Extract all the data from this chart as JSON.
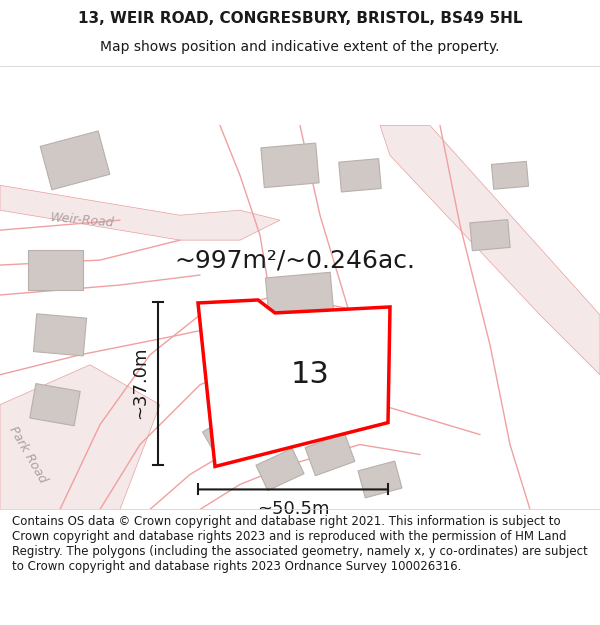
{
  "title": "13, WEIR ROAD, CONGRESBURY, BRISTOL, BS49 5HL",
  "subtitle": "Map shows position and indicative extent of the property.",
  "footer": "Contains OS data © Crown copyright and database right 2021. This information is subject to Crown copyright and database rights 2023 and is reproduced with the permission of HM Land Registry. The polygons (including the associated geometry, namely x, y co-ordinates) are subject to Crown copyright and database rights 2023 Ordnance Survey 100026316.",
  "area_label": "~997m²/~0.246ac.",
  "width_label": "~50.5m",
  "height_label": "~37.0m",
  "number_label": "13",
  "bg_color": "#f5f0ee",
  "map_bg": "#f5f0f0",
  "road_color": "#f5c0c0",
  "road_stroke": "#e8a0a0",
  "building_color": "#d8d0cc",
  "building_stroke": "#c8c0bc",
  "highlight_color": "#ffffff",
  "highlight_stroke": "#ff0000",
  "dimension_color": "#1a1a1a",
  "text_color": "#1a1a1a",
  "road_label_color": "#a0a0a0",
  "footer_color": "#1a1a1a",
  "title_fontsize": 11,
  "subtitle_fontsize": 10,
  "footer_fontsize": 8.5,
  "area_fontsize": 18,
  "number_fontsize": 22,
  "dim_fontsize": 13
}
